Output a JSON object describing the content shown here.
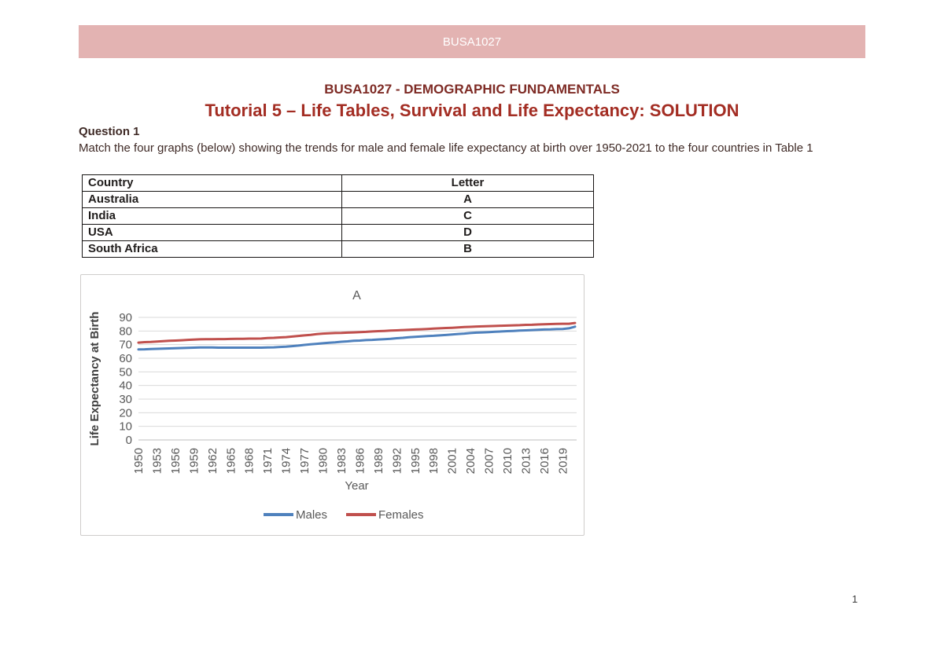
{
  "banner": {
    "text": "BUSA1027",
    "bg_color": "#E3B3B2",
    "text_color": "#FFFFFF"
  },
  "header": {
    "course_title": "BUSA1027 - DEMOGRAPHIC FUNDAMENTALS",
    "tutorial_title": "Tutorial 5 – Life Tables, Survival and Life Expectancy: SOLUTION"
  },
  "question": {
    "heading": "Question 1",
    "text": "Match the four graphs (below) showing the trends for male and female life expectancy at birth over 1950-2021 to the four countries in Table 1"
  },
  "table": {
    "headers": [
      "Country",
      "Letter"
    ],
    "rows": [
      [
        "Australia",
        "A"
      ],
      [
        "India",
        "C"
      ],
      [
        "USA",
        "D"
      ],
      [
        "South Africa",
        "B"
      ]
    ]
  },
  "chart_data": {
    "type": "line",
    "title": "A",
    "xlabel": "Year",
    "ylabel": "Life Expectancy at Birth",
    "ylim": [
      0,
      90
    ],
    "ytick_interval": 10,
    "x_start": 1950,
    "x_end": 2021,
    "x_step": 1,
    "grid": true,
    "legend_position": "bottom",
    "gridline_color": "#D9D9D9",
    "axis_line_color": "#BFBFBF",
    "xtick_labels": [
      "1950",
      "1953",
      "1956",
      "1959",
      "1962",
      "1965",
      "1968",
      "1971",
      "1974",
      "1977",
      "1980",
      "1983",
      "1986",
      "1989",
      "1992",
      "1995",
      "1998",
      "2001",
      "2004",
      "2007",
      "2010",
      "2013",
      "2016",
      "2019"
    ],
    "series": [
      {
        "name": "Males",
        "color": "#4F81BD",
        "values": [
          66.5,
          66.6,
          66.8,
          66.9,
          67.1,
          67.2,
          67.3,
          67.5,
          67.6,
          67.8,
          67.9,
          67.9,
          67.9,
          67.8,
          67.8,
          67.8,
          67.8,
          67.8,
          67.8,
          67.8,
          67.8,
          67.9,
          68.0,
          68.3,
          68.5,
          68.9,
          69.3,
          69.8,
          70.2,
          70.6,
          71.0,
          71.4,
          71.7,
          72.1,
          72.4,
          72.8,
          73.0,
          73.3,
          73.5,
          73.8,
          74.0,
          74.3,
          74.7,
          75.0,
          75.4,
          75.7,
          76.0,
          76.3,
          76.5,
          76.8,
          77.1,
          77.4,
          77.8,
          78.1,
          78.5,
          78.8,
          79.0,
          79.2,
          79.5,
          79.7,
          79.9,
          80.1,
          80.3,
          80.5,
          80.7,
          80.9,
          81.1,
          81.2,
          81.4,
          81.5,
          82.0,
          83.2
        ]
      },
      {
        "name": "Females",
        "color": "#C0504D",
        "values": [
          71.5,
          71.8,
          72.0,
          72.3,
          72.5,
          72.8,
          73.0,
          73.2,
          73.5,
          73.7,
          73.9,
          74.0,
          74.0,
          74.1,
          74.1,
          74.2,
          74.3,
          74.3,
          74.4,
          74.4,
          74.5,
          74.8,
          75.0,
          75.3,
          75.5,
          75.9,
          76.4,
          76.8,
          77.2,
          77.7,
          78.1,
          78.3,
          78.5,
          78.6,
          78.8,
          79.0,
          79.2,
          79.4,
          79.7,
          79.9,
          80.1,
          80.3,
          80.5,
          80.7,
          80.9,
          81.1,
          81.3,
          81.5,
          81.8,
          82.0,
          82.2,
          82.4,
          82.6,
          82.9,
          83.1,
          83.3,
          83.4,
          83.6,
          83.7,
          83.9,
          84.0,
          84.2,
          84.3,
          84.5,
          84.6,
          84.8,
          84.9,
          85.1,
          85.2,
          85.3,
          85.3,
          85.9
        ]
      }
    ]
  },
  "page": {
    "number": "1"
  }
}
